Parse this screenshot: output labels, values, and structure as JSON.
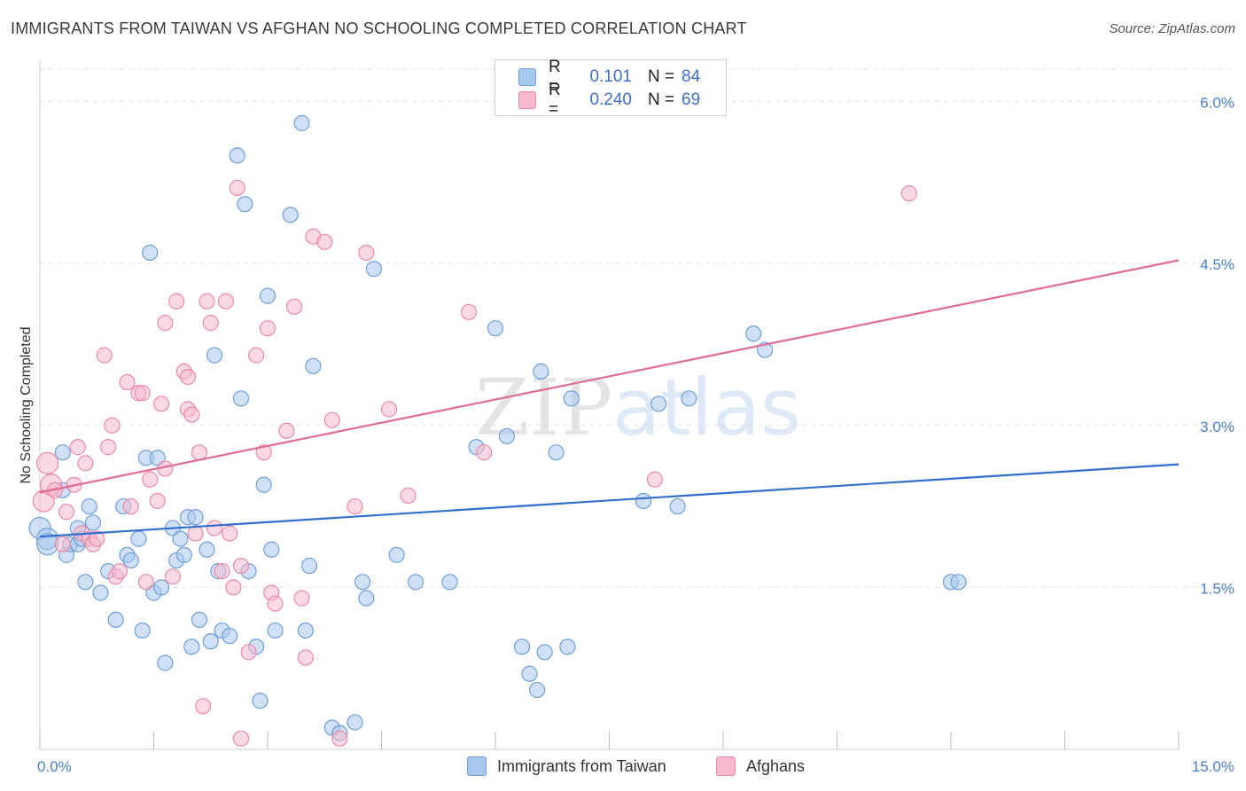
{
  "title": "IMMIGRANTS FROM TAIWAN VS AFGHAN NO SCHOOLING COMPLETED CORRELATION CHART",
  "source": "Source: ZipAtlas.com",
  "watermark": "ZIPatlas",
  "legend": {
    "rows": [
      {
        "r_label": "R =",
        "r_value": "0.101",
        "n_label": "N =",
        "n_value": "84",
        "color": "#a9c8f0",
        "border": "#6f9fd8"
      },
      {
        "r_label": "R =",
        "r_value": "0.240",
        "n_label": "N =",
        "n_value": "69",
        "color": "#f7b9cd",
        "border": "#e88aa8"
      }
    ]
  },
  "bottom_legend": [
    {
      "label": "Immigrants from Taiwan",
      "color": "#a9c8f0",
      "border": "#6f9fd8"
    },
    {
      "label": "Afghans",
      "color": "#f7b9cd",
      "border": "#e88aa8"
    }
  ],
  "chart_data": {
    "type": "scatter",
    "title": "IMMIGRANTS FROM TAIWAN VS AFGHAN NO SCHOOLING COMPLETED CORRELATION CHART",
    "xlabel": "",
    "ylabel": "No Schooling Completed",
    "xlim": [
      0,
      15
    ],
    "ylim": [
      0,
      6.3
    ],
    "x_tick_labels": [
      "0.0%",
      "15.0%"
    ],
    "y_ticks": [
      1.5,
      3.0,
      4.5,
      6.0
    ],
    "y_tick_labels": [
      "1.5%",
      "3.0%",
      "4.5%",
      "6.0%"
    ],
    "grid": "horizontal dashed",
    "legend_position": "top-center",
    "series": [
      {
        "name": "Immigrants from Taiwan",
        "color": "#6f9fd8",
        "fill": "#a9c8f0",
        "line_color": "#2f6fcd",
        "trend": {
          "x": [
            0,
            15
          ],
          "y": [
            1.97,
            2.64
          ]
        },
        "points": [
          [
            0.0,
            2.05
          ],
          [
            0.1,
            1.95
          ],
          [
            0.1,
            1.9
          ],
          [
            0.3,
            2.4
          ],
          [
            0.3,
            2.75
          ],
          [
            0.35,
            1.8
          ],
          [
            0.4,
            1.9
          ],
          [
            0.5,
            1.9
          ],
          [
            0.5,
            2.05
          ],
          [
            0.6,
            1.55
          ],
          [
            0.65,
            2.25
          ],
          [
            0.7,
            2.1
          ],
          [
            0.8,
            1.45
          ],
          [
            0.9,
            1.65
          ],
          [
            1.0,
            1.2
          ],
          [
            1.1,
            2.25
          ],
          [
            1.15,
            1.8
          ],
          [
            1.2,
            1.75
          ],
          [
            1.3,
            1.95
          ],
          [
            1.35,
            1.1
          ],
          [
            1.4,
            2.7
          ],
          [
            1.45,
            4.6
          ],
          [
            1.5,
            1.45
          ],
          [
            1.55,
            2.7
          ],
          [
            1.6,
            1.5
          ],
          [
            1.65,
            0.8
          ],
          [
            1.75,
            2.05
          ],
          [
            1.8,
            1.75
          ],
          [
            1.9,
            1.8
          ],
          [
            1.95,
            2.15
          ],
          [
            2.0,
            0.95
          ],
          [
            2.1,
            1.2
          ],
          [
            2.2,
            1.85
          ],
          [
            2.25,
            1.0
          ],
          [
            2.3,
            3.65
          ],
          [
            2.35,
            1.65
          ],
          [
            2.4,
            1.1
          ],
          [
            2.5,
            1.05
          ],
          [
            2.6,
            5.5
          ],
          [
            2.65,
            3.25
          ],
          [
            2.7,
            5.05
          ],
          [
            2.75,
            1.65
          ],
          [
            2.85,
            0.95
          ],
          [
            2.9,
            0.45
          ],
          [
            2.95,
            2.45
          ],
          [
            3.0,
            4.2
          ],
          [
            3.05,
            1.85
          ],
          [
            3.1,
            1.1
          ],
          [
            3.3,
            4.95
          ],
          [
            3.45,
            5.8
          ],
          [
            3.5,
            1.1
          ],
          [
            3.55,
            1.7
          ],
          [
            3.6,
            3.55
          ],
          [
            3.85,
            0.2
          ],
          [
            3.95,
            0.15
          ],
          [
            4.15,
            0.25
          ],
          [
            4.25,
            1.55
          ],
          [
            4.3,
            1.4
          ],
          [
            4.4,
            4.45
          ],
          [
            4.7,
            1.8
          ],
          [
            4.95,
            1.55
          ],
          [
            5.4,
            1.55
          ],
          [
            5.75,
            2.8
          ],
          [
            6.0,
            3.9
          ],
          [
            6.15,
            2.9
          ],
          [
            6.35,
            0.95
          ],
          [
            6.45,
            0.7
          ],
          [
            6.55,
            0.55
          ],
          [
            6.6,
            3.5
          ],
          [
            6.65,
            0.9
          ],
          [
            6.8,
            2.75
          ],
          [
            6.95,
            0.95
          ],
          [
            7.0,
            3.25
          ],
          [
            7.95,
            2.3
          ],
          [
            8.15,
            3.2
          ],
          [
            8.4,
            2.25
          ],
          [
            8.55,
            3.25
          ],
          [
            9.4,
            3.85
          ],
          [
            9.55,
            3.7
          ],
          [
            12.0,
            1.55
          ],
          [
            12.1,
            1.55
          ],
          [
            1.85,
            1.95
          ],
          [
            0.55,
            1.95
          ],
          [
            2.05,
            2.15
          ]
        ]
      },
      {
        "name": "Afghans",
        "color": "#e88aa8",
        "fill": "#f7b9cd",
        "line_color": "#e06b96",
        "trend": {
          "x": [
            0,
            15
          ],
          "y": [
            2.38,
            4.53
          ]
        },
        "points": [
          [
            0.05,
            2.3
          ],
          [
            0.1,
            2.65
          ],
          [
            0.15,
            2.45
          ],
          [
            0.2,
            2.4
          ],
          [
            0.3,
            1.9
          ],
          [
            0.35,
            2.2
          ],
          [
            0.45,
            2.45
          ],
          [
            0.5,
            2.8
          ],
          [
            0.55,
            2.0
          ],
          [
            0.6,
            2.65
          ],
          [
            0.65,
            1.95
          ],
          [
            0.7,
            1.9
          ],
          [
            0.75,
            1.95
          ],
          [
            0.85,
            3.65
          ],
          [
            0.9,
            2.8
          ],
          [
            0.95,
            3.0
          ],
          [
            1.0,
            1.6
          ],
          [
            1.05,
            1.65
          ],
          [
            1.15,
            3.4
          ],
          [
            1.2,
            2.25
          ],
          [
            1.3,
            3.3
          ],
          [
            1.35,
            3.3
          ],
          [
            1.4,
            1.55
          ],
          [
            1.45,
            2.5
          ],
          [
            1.55,
            2.3
          ],
          [
            1.6,
            3.2
          ],
          [
            1.65,
            2.6
          ],
          [
            1.65,
            3.95
          ],
          [
            1.75,
            1.6
          ],
          [
            1.8,
            4.15
          ],
          [
            1.9,
            3.5
          ],
          [
            1.95,
            3.45
          ],
          [
            1.95,
            3.15
          ],
          [
            2.0,
            3.1
          ],
          [
            2.05,
            2.0
          ],
          [
            2.1,
            2.75
          ],
          [
            2.15,
            0.4
          ],
          [
            2.2,
            4.15
          ],
          [
            2.25,
            3.95
          ],
          [
            2.3,
            2.05
          ],
          [
            2.4,
            1.65
          ],
          [
            2.45,
            4.15
          ],
          [
            2.5,
            2.0
          ],
          [
            2.55,
            1.5
          ],
          [
            2.6,
            5.2
          ],
          [
            2.65,
            1.7
          ],
          [
            2.75,
            0.9
          ],
          [
            2.85,
            3.65
          ],
          [
            2.95,
            2.75
          ],
          [
            3.0,
            3.9
          ],
          [
            3.05,
            1.45
          ],
          [
            3.1,
            1.35
          ],
          [
            3.25,
            2.95
          ],
          [
            3.35,
            4.1
          ],
          [
            3.45,
            1.4
          ],
          [
            3.5,
            0.85
          ],
          [
            3.6,
            4.75
          ],
          [
            3.75,
            4.7
          ],
          [
            3.85,
            3.05
          ],
          [
            3.95,
            0.1
          ],
          [
            4.15,
            2.25
          ],
          [
            4.3,
            4.6
          ],
          [
            4.6,
            3.15
          ],
          [
            4.85,
            2.35
          ],
          [
            5.65,
            4.05
          ],
          [
            5.85,
            2.75
          ],
          [
            8.1,
            2.5
          ],
          [
            11.45,
            5.15
          ],
          [
            2.65,
            0.1
          ]
        ]
      }
    ]
  }
}
